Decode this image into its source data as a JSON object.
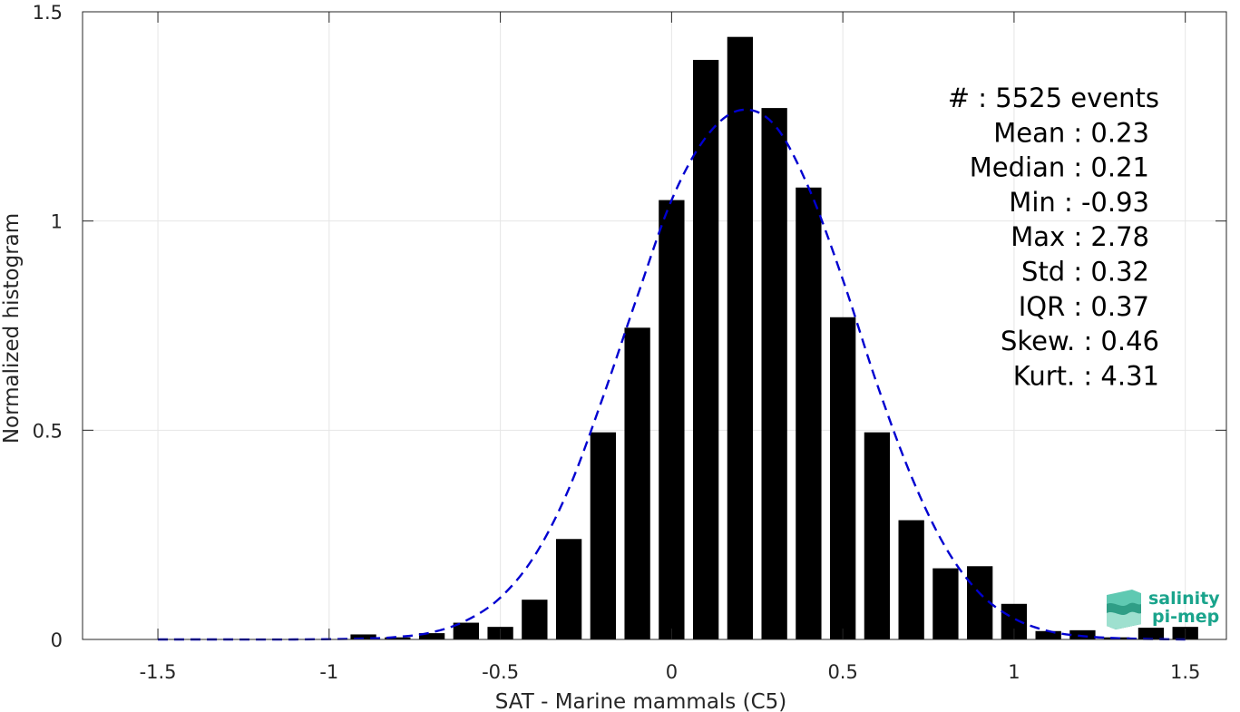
{
  "chart_data": {
    "type": "bar",
    "xlabel": "SAT - Marine mammals (C5)",
    "ylabel": "Normalized histogram",
    "xlim": [
      -1.72,
      1.62
    ],
    "ylim": [
      0,
      1.5
    ],
    "xticks": [
      -1.5,
      -1,
      -0.5,
      0,
      0.5,
      1,
      1.5
    ],
    "xtick_labels": [
      "-1.5",
      "-1",
      "-0.5",
      "0",
      "0.5",
      "1",
      "1.5"
    ],
    "yticks": [
      0,
      0.5,
      1,
      1.5
    ],
    "ytick_labels": [
      "0",
      "0.5",
      "1",
      "1.5"
    ],
    "grid": true,
    "bar_width": 0.075,
    "bars": {
      "x": [
        -0.9,
        -0.8,
        -0.7,
        -0.6,
        -0.5,
        -0.4,
        -0.3,
        -0.2,
        -0.1,
        0.0,
        0.1,
        0.2,
        0.3,
        0.4,
        0.5,
        0.6,
        0.7,
        0.8,
        0.9,
        1.0,
        1.1,
        1.2,
        1.3,
        1.4,
        1.5
      ],
      "values": [
        0.012,
        0.005,
        0.015,
        0.04,
        0.03,
        0.095,
        0.24,
        0.495,
        0.745,
        1.05,
        1.385,
        1.44,
        1.27,
        1.08,
        0.77,
        0.495,
        0.285,
        0.17,
        0.175,
        0.085,
        0.02,
        0.022,
        0.005,
        0.028,
        0.03
      ],
      "color": "#000000"
    },
    "fit": {
      "x": [
        -1.5,
        -1.3,
        -1.1,
        -0.9,
        -0.8,
        -0.7,
        -0.6,
        -0.5,
        -0.4,
        -0.3,
        -0.2,
        -0.1,
        0.0,
        0.1,
        0.2,
        0.3,
        0.4,
        0.5,
        0.6,
        0.7,
        0.8,
        0.9,
        1.0,
        1.1,
        1.2,
        1.3,
        1.4,
        1.5
      ],
      "values": [
        0.0,
        0.0,
        0.0,
        0.002,
        0.006,
        0.017,
        0.045,
        0.1,
        0.2,
        0.36,
        0.58,
        0.82,
        1.05,
        1.2,
        1.265,
        1.23,
        1.08,
        0.86,
        0.61,
        0.39,
        0.22,
        0.11,
        0.05,
        0.02,
        0.008,
        0.003,
        0.001,
        0.0
      ],
      "color": "#0000d0",
      "style": "dashed"
    },
    "stats": [
      {
        "label": "#  : 5525 events"
      },
      {
        "label": "Mean : 0.23"
      },
      {
        "label": "Median : 0.21"
      },
      {
        "label": "Min : -0.93"
      },
      {
        "label": "Max : 2.78"
      },
      {
        "label": "Std : 0.32"
      },
      {
        "label": "IQR : 0.37"
      },
      {
        "label": "Skew. : 0.46"
      },
      {
        "label": "Kurt. : 4.31"
      }
    ]
  },
  "logo": {
    "line1": "salinity",
    "line2": "pi-mep",
    "color": "#1aa48c"
  }
}
